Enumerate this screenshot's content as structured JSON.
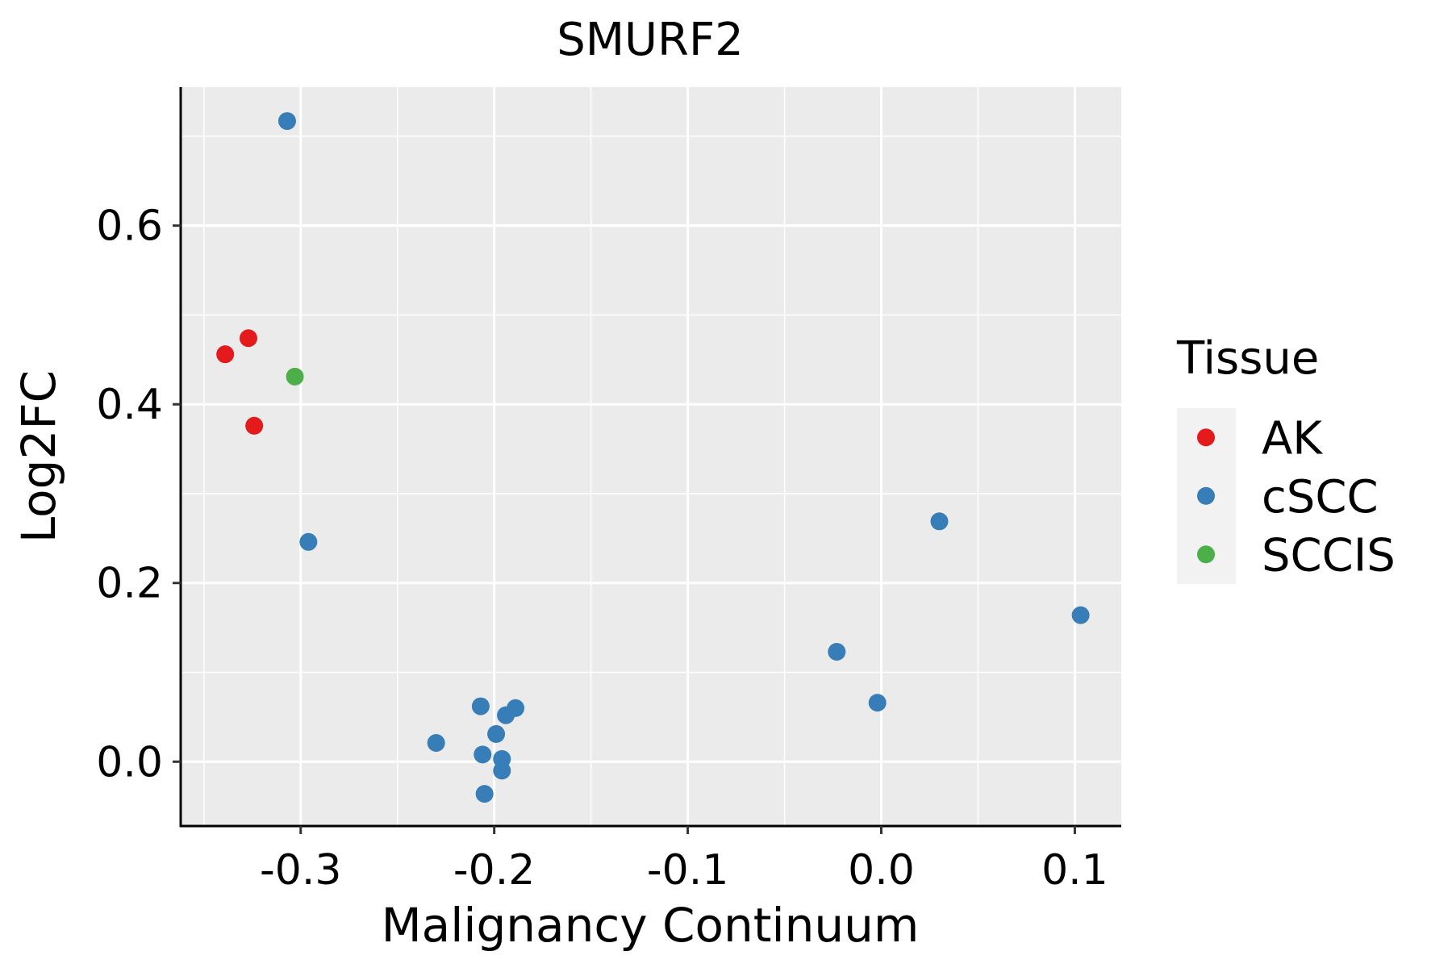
{
  "chart_data": {
    "type": "scatter",
    "title": "SMURF2",
    "xlabel": "Malignancy Continuum",
    "ylabel": "Log2FC",
    "xlim": [
      -0.362,
      0.124
    ],
    "ylim": [
      -0.072,
      0.755
    ],
    "xticks": [
      {
        "value": -0.3,
        "label": "-0.3"
      },
      {
        "value": -0.2,
        "label": "-0.2"
      },
      {
        "value": -0.1,
        "label": "-0.1"
      },
      {
        "value": 0.0,
        "label": "0.0"
      },
      {
        "value": 0.1,
        "label": "0.1"
      }
    ],
    "yticks": [
      {
        "value": 0.0,
        "label": "0.0"
      },
      {
        "value": 0.2,
        "label": "0.2"
      },
      {
        "value": 0.4,
        "label": "0.4"
      },
      {
        "value": 0.6,
        "label": "0.6"
      }
    ],
    "grid": true,
    "legend": {
      "title": "Tissue",
      "position": "right",
      "entries": [
        {
          "name": "AK",
          "color": "#e41a1c"
        },
        {
          "name": "cSCC",
          "color": "#377eb8"
        },
        {
          "name": "SCCIS",
          "color": "#4daf4a"
        }
      ]
    },
    "series": [
      {
        "name": "AK",
        "color": "#e41a1c",
        "points": [
          {
            "x": -0.339,
            "y": 0.456
          },
          {
            "x": -0.327,
            "y": 0.474
          },
          {
            "x": -0.324,
            "y": 0.376
          }
        ]
      },
      {
        "name": "cSCC",
        "color": "#377eb8",
        "points": [
          {
            "x": -0.307,
            "y": 0.717
          },
          {
            "x": -0.296,
            "y": 0.246
          },
          {
            "x": -0.23,
            "y": 0.021
          },
          {
            "x": -0.207,
            "y": 0.062
          },
          {
            "x": -0.206,
            "y": 0.008
          },
          {
            "x": -0.205,
            "y": -0.036
          },
          {
            "x": -0.199,
            "y": 0.031
          },
          {
            "x": -0.196,
            "y": 0.003
          },
          {
            "x": -0.196,
            "y": -0.01
          },
          {
            "x": -0.194,
            "y": 0.052
          },
          {
            "x": -0.189,
            "y": 0.06
          },
          {
            "x": -0.023,
            "y": 0.123
          },
          {
            "x": -0.002,
            "y": 0.066
          },
          {
            "x": 0.03,
            "y": 0.269
          },
          {
            "x": 0.103,
            "y": 0.164
          }
        ]
      },
      {
        "name": "SCCIS",
        "color": "#4daf4a",
        "points": [
          {
            "x": -0.303,
            "y": 0.431
          }
        ]
      }
    ]
  }
}
